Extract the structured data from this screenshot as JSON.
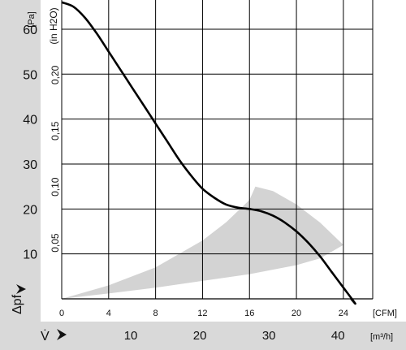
{
  "chart_data": {
    "type": "line",
    "x_axis_primary": {
      "unit_label": "[CFM]",
      "ticks": [
        "0",
        "4",
        "8",
        "12",
        "16",
        "20",
        "24"
      ],
      "range": [
        0,
        26.5
      ]
    },
    "x_axis_secondary": {
      "symbol": "V̇",
      "unit_label": "[m³/h]",
      "ticks": [
        "10",
        "20",
        "30",
        "40"
      ],
      "tick_values_cfm": [
        5.886,
        11.772,
        17.657,
        23.543
      ]
    },
    "y_axis_primary": {
      "symbol": "Δpf",
      "unit_label": "[Pa]",
      "ticks": [
        "10",
        "20",
        "30",
        "40",
        "50",
        "60"
      ],
      "range": [
        0,
        66.5
      ]
    },
    "y_axis_secondary": {
      "unit_label": "(in H2O)",
      "ticks": [
        "0,05",
        "0,10",
        "0,15",
        "0,20"
      ],
      "tick_values_pa": [
        12.45,
        24.9,
        37.35,
        49.8
      ]
    },
    "grid": true,
    "series": [
      {
        "x": [
          0,
          1,
          2,
          3,
          4,
          5,
          6,
          7,
          8,
          9,
          10,
          11,
          12,
          13,
          14,
          15,
          16,
          17,
          18,
          19,
          20,
          21,
          22,
          23,
          24,
          25,
          25.7
        ],
        "y": [
          66,
          65,
          62.5,
          59,
          55,
          51,
          47,
          43,
          39,
          35,
          31,
          27.5,
          24.5,
          22.5,
          21,
          20.3,
          20,
          19.5,
          18.5,
          17,
          15,
          12.5,
          9.5,
          6,
          2.5,
          -1,
          -3
        ],
        "color": "#000000"
      }
    ],
    "shaded_regions": [
      {
        "upper": {
          "x": [
            0,
            4,
            8,
            12,
            14,
            16,
            16.5
          ],
          "y": [
            0,
            3,
            7,
            13,
            17,
            22,
            25
          ]
        },
        "right": {
          "x": [
            16.5,
            18,
            20,
            22,
            24
          ],
          "y": [
            25,
            24,
            21,
            17,
            12
          ]
        },
        "lower": {
          "x": [
            24,
            22,
            20,
            16,
            12,
            8,
            4,
            0
          ],
          "y": [
            12,
            9,
            7.5,
            5.5,
            4,
            2.5,
            1.2,
            0
          ]
        },
        "color": "#d3d3d3"
      }
    ],
    "colors": {
      "left_band": "#d9d9d9",
      "bottom_band": "#d9d9d9",
      "grid": "#000000"
    }
  }
}
